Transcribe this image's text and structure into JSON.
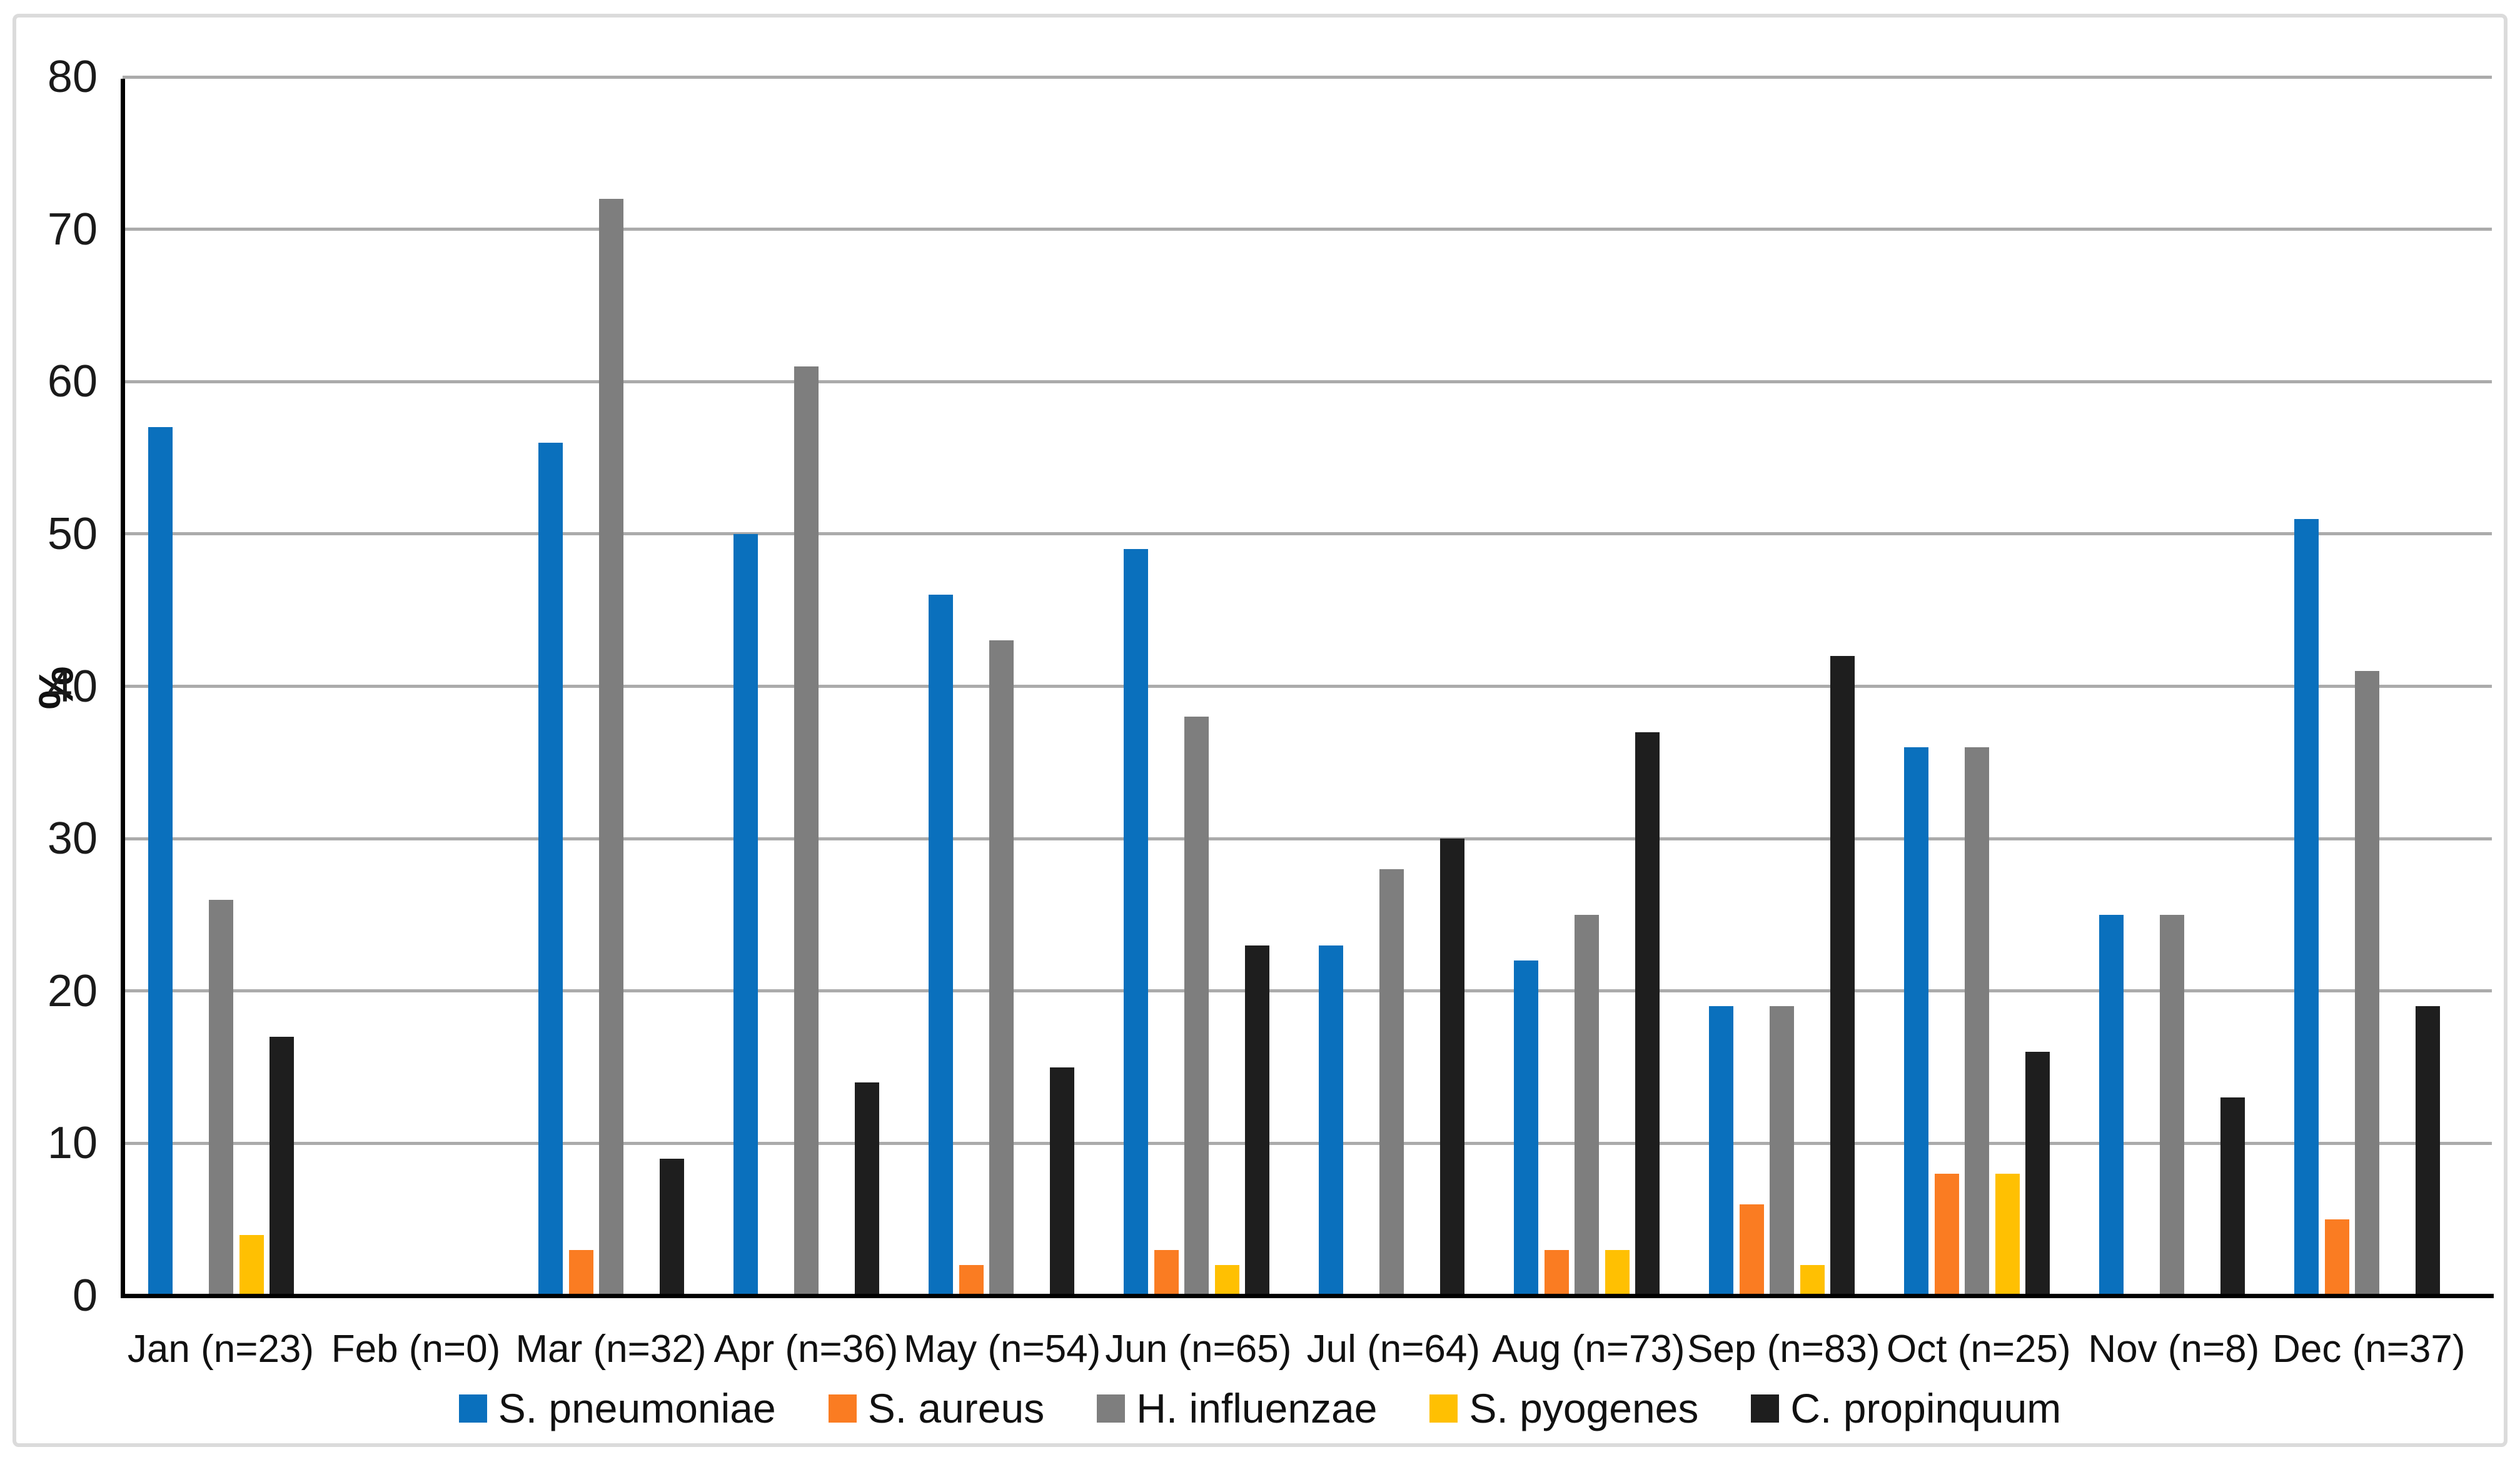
{
  "figure": {
    "background": "#FFFFFF",
    "frame_border_color": "#DBDBDB"
  },
  "chart_data": {
    "type": "bar",
    "title": "",
    "xlabel": "",
    "ylabel": "%",
    "ylim": [
      0,
      80
    ],
    "yticks": [
      0,
      10,
      20,
      30,
      40,
      50,
      60,
      70,
      80
    ],
    "grid": true,
    "gridline_color": "#ABABAB",
    "axis_color": "#000000",
    "legend_position": "bottom",
    "categories": [
      "Jan (n=23)",
      "Feb (n=0)",
      "Mar (n=32)",
      "Apr (n=36)",
      "May (n=54)",
      "Jun (n=65)",
      "Jul (n=64)",
      "Aug (n=73)",
      "Sep (n=83)",
      "Oct (n=25)",
      "Nov (n=8)",
      "Dec (n=37)"
    ],
    "series": [
      {
        "name": "S. pneumoniae",
        "color": "#0A70BD",
        "values": [
          57,
          0,
          56,
          50,
          46,
          49,
          23,
          22,
          19,
          36,
          25,
          51
        ]
      },
      {
        "name": "S. aureus",
        "color": "#FA7C22",
        "values": [
          0,
          0,
          3,
          0,
          2,
          3,
          0,
          3,
          6,
          8,
          0,
          5
        ]
      },
      {
        "name": "H. influenzae",
        "color": "#7E7E7E",
        "values": [
          26,
          0,
          72,
          61,
          43,
          38,
          28,
          25,
          19,
          36,
          25,
          41
        ]
      },
      {
        "name": "S. pyogenes",
        "color": "#FFC002",
        "values": [
          4,
          0,
          0,
          0,
          0,
          2,
          0,
          3,
          2,
          8,
          0,
          0
        ]
      },
      {
        "name": "C. propinquum",
        "color": "#1E1E1E",
        "values": [
          17,
          0,
          9,
          14,
          15,
          23,
          30,
          37,
          42,
          16,
          13,
          19
        ]
      }
    ]
  }
}
